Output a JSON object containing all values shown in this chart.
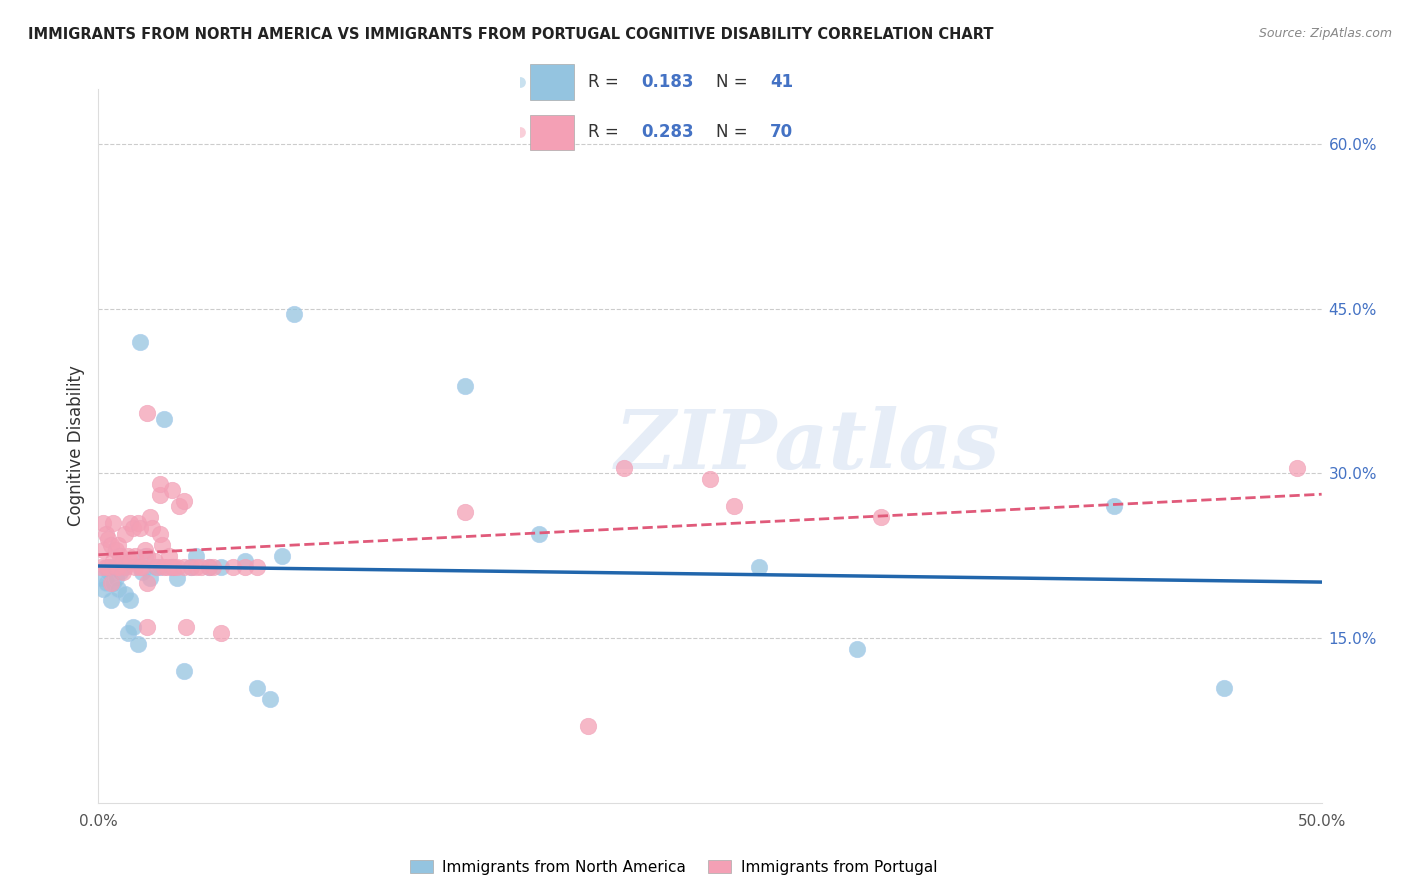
{
  "title": "IMMIGRANTS FROM NORTH AMERICA VS IMMIGRANTS FROM PORTUGAL COGNITIVE DISABILITY CORRELATION CHART",
  "source": "Source: ZipAtlas.com",
  "ylabel": "Cognitive Disability",
  "xlim": [
    0.0,
    0.5
  ],
  "ylim": [
    0.0,
    0.65
  ],
  "xticks": [
    0.0,
    0.1,
    0.2,
    0.3,
    0.4,
    0.5
  ],
  "xtick_labels": [
    "0.0%",
    "",
    "",
    "",
    "",
    "50.0%"
  ],
  "yticks_right": [
    0.15,
    0.3,
    0.45,
    0.6
  ],
  "ytick_labels_right": [
    "15.0%",
    "30.0%",
    "45.0%",
    "60.0%"
  ],
  "color_blue": "#94c4e0",
  "color_pink": "#f4a0b5",
  "line_color_blue": "#2166ac",
  "line_color_pink": "#e05a7a",
  "R_blue": 0.183,
  "N_blue": 41,
  "R_pink": 0.283,
  "N_pink": 70,
  "watermark": "ZIPatlas",
  "legend_label_blue": "Immigrants from North America",
  "legend_label_pink": "Immigrants from Portugal",
  "na_x": [
    0.001,
    0.002,
    0.003,
    0.004,
    0.005,
    0.005,
    0.006,
    0.007,
    0.008,
    0.009,
    0.01,
    0.011,
    0.012,
    0.013,
    0.014,
    0.016,
    0.017,
    0.018,
    0.019,
    0.021,
    0.023,
    0.025,
    0.027,
    0.03,
    0.032,
    0.035,
    0.038,
    0.04,
    0.045,
    0.05,
    0.06,
    0.065,
    0.07,
    0.075,
    0.08,
    0.15,
    0.18,
    0.27,
    0.31,
    0.415,
    0.46
  ],
  "na_y": [
    0.205,
    0.195,
    0.2,
    0.21,
    0.185,
    0.215,
    0.2,
    0.205,
    0.195,
    0.21,
    0.215,
    0.19,
    0.155,
    0.185,
    0.16,
    0.145,
    0.42,
    0.21,
    0.225,
    0.205,
    0.215,
    0.215,
    0.35,
    0.215,
    0.205,
    0.12,
    0.215,
    0.225,
    0.215,
    0.215,
    0.22,
    0.105,
    0.095,
    0.225,
    0.445,
    0.38,
    0.245,
    0.215,
    0.14,
    0.27,
    0.105
  ],
  "pt_x": [
    0.001,
    0.002,
    0.002,
    0.003,
    0.003,
    0.004,
    0.004,
    0.005,
    0.005,
    0.006,
    0.006,
    0.007,
    0.007,
    0.008,
    0.008,
    0.009,
    0.01,
    0.01,
    0.011,
    0.011,
    0.012,
    0.013,
    0.013,
    0.014,
    0.015,
    0.015,
    0.016,
    0.017,
    0.017,
    0.018,
    0.019,
    0.02,
    0.02,
    0.021,
    0.022,
    0.023,
    0.024,
    0.025,
    0.026,
    0.027,
    0.028,
    0.029,
    0.03,
    0.031,
    0.032,
    0.033,
    0.035,
    0.036,
    0.038,
    0.04,
    0.042,
    0.045,
    0.047,
    0.05,
    0.055,
    0.06,
    0.065,
    0.02,
    0.025,
    0.03,
    0.035,
    0.15,
    0.2,
    0.215,
    0.25,
    0.26,
    0.32,
    0.49,
    0.025,
    0.02
  ],
  "pt_y": [
    0.215,
    0.23,
    0.255,
    0.215,
    0.245,
    0.24,
    0.215,
    0.235,
    0.2,
    0.255,
    0.22,
    0.215,
    0.23,
    0.235,
    0.215,
    0.225,
    0.22,
    0.21,
    0.245,
    0.215,
    0.225,
    0.255,
    0.22,
    0.25,
    0.225,
    0.215,
    0.255,
    0.25,
    0.215,
    0.215,
    0.23,
    0.16,
    0.225,
    0.26,
    0.25,
    0.22,
    0.215,
    0.245,
    0.235,
    0.215,
    0.215,
    0.225,
    0.215,
    0.215,
    0.215,
    0.27,
    0.215,
    0.16,
    0.215,
    0.215,
    0.215,
    0.215,
    0.215,
    0.155,
    0.215,
    0.215,
    0.215,
    0.355,
    0.28,
    0.285,
    0.275,
    0.265,
    0.07,
    0.305,
    0.295,
    0.27,
    0.26,
    0.305,
    0.29,
    0.2
  ]
}
